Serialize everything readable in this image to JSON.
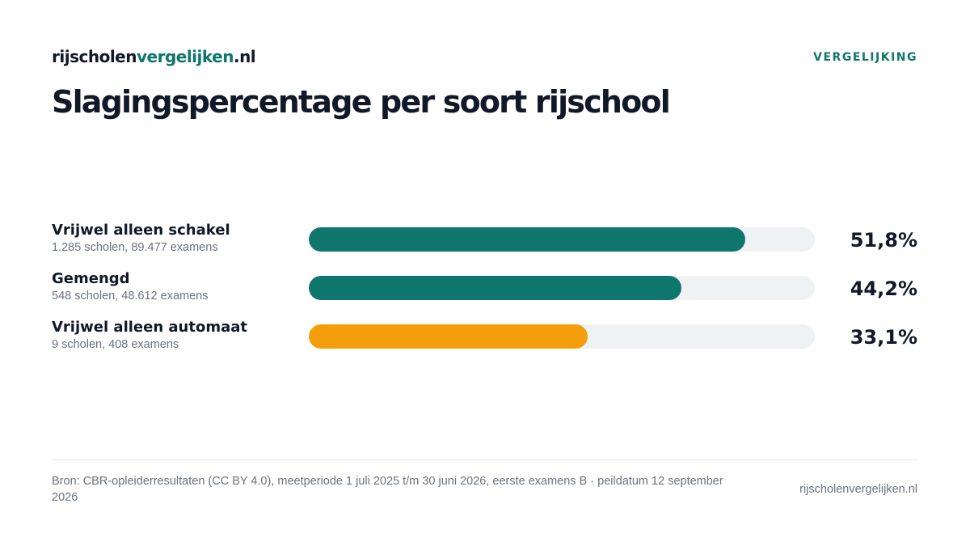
{
  "header": {
    "brand_prefix": "rijscholen",
    "brand_accent": "vergelijken",
    "brand_suffix": ".nl",
    "tag": "VERGELIJKING"
  },
  "chart_data": {
    "type": "bar",
    "orientation": "horizontal",
    "title": "Slagingspercentage per soort rijschool",
    "xlim": [
      0,
      60
    ],
    "categories": [
      "Vrijwel alleen schakel",
      "Gemengd",
      "Vrijwel alleen automaat"
    ],
    "subtitles": [
      "1.285 scholen, 89.477 examens",
      "548 scholen, 48.612 examens",
      "9 scholen, 408 examens"
    ],
    "values": [
      51.8,
      44.2,
      33.1
    ],
    "value_labels": [
      "51,8%",
      "44,2%",
      "33,1%"
    ],
    "colors": [
      "#0f766e",
      "#0f766e",
      "#f59e0b"
    ],
    "track_color": "#eef2f2",
    "grid": false
  },
  "footer": {
    "source": "Bron: CBR-opleiderresultaten (CC BY 4.0), meetperiode 1 juli 2025 t/m 30 juni 2026, eerste examens B · peildatum 12 september 2026",
    "site": "rijscholenvergelijken.nl"
  }
}
